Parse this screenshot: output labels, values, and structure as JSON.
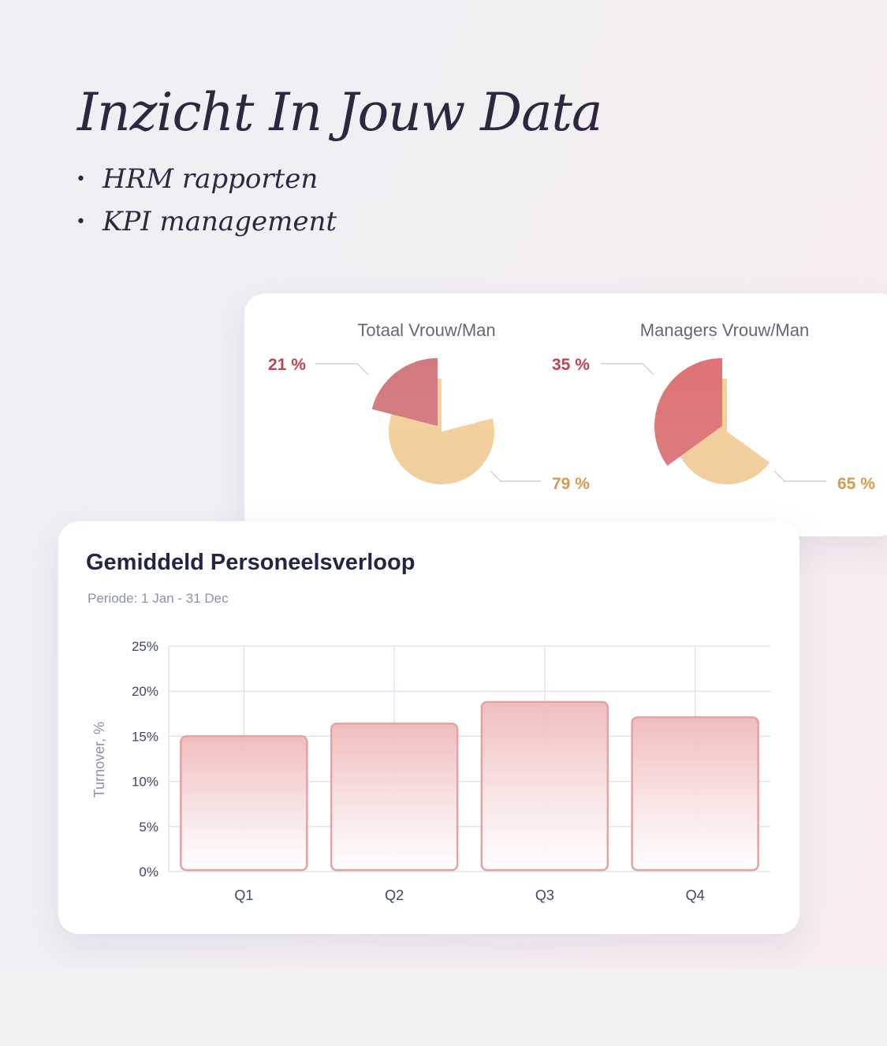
{
  "hero": {
    "title": "Inzicht In Jouw Data",
    "bullets": [
      "HRM rapporten",
      "KPI management"
    ],
    "bullet_symbol": "•"
  },
  "colors": {
    "text_dark": "#2b2840",
    "pie_slice_female": "#d7777c",
    "pie_slice_male": "#f4cf96",
    "label_female": "#b8484e",
    "label_male": "#d89a4e",
    "bar_stroke": "#e4a2a5",
    "bar_fill_top": "#f0b9bb",
    "grid": "#dde0eb",
    "axis_text": "#3e4666"
  },
  "chart_data": [
    {
      "type": "pie",
      "title": "Totaal Vrouw/Man",
      "slices": [
        {
          "value": 21,
          "label": "21 %"
        },
        {
          "value": 79,
          "label": "79 %"
        }
      ]
    },
    {
      "type": "pie",
      "title": "Managers Vrouw/Man",
      "slices": [
        {
          "value": 35,
          "label": "35 %"
        },
        {
          "value": 65,
          "label": "65 %"
        }
      ]
    },
    {
      "type": "bar",
      "title": "Gemiddeld Personeelsverloop",
      "subtitle": "Periode: 1 Jan - 31 Dec",
      "ylabel": "Turnover, %",
      "xlabel": "",
      "categories": [
        "Q1",
        "Q2",
        "Q3",
        "Q4"
      ],
      "values": [
        15,
        16.4,
        18.8,
        17.1
      ],
      "ylim": [
        0,
        25
      ],
      "yticks": [
        0,
        5,
        10,
        15,
        20,
        25
      ],
      "ytick_labels": [
        "0%",
        "5%",
        "10%",
        "15%",
        "20%",
        "25%"
      ],
      "grid": true
    }
  ]
}
